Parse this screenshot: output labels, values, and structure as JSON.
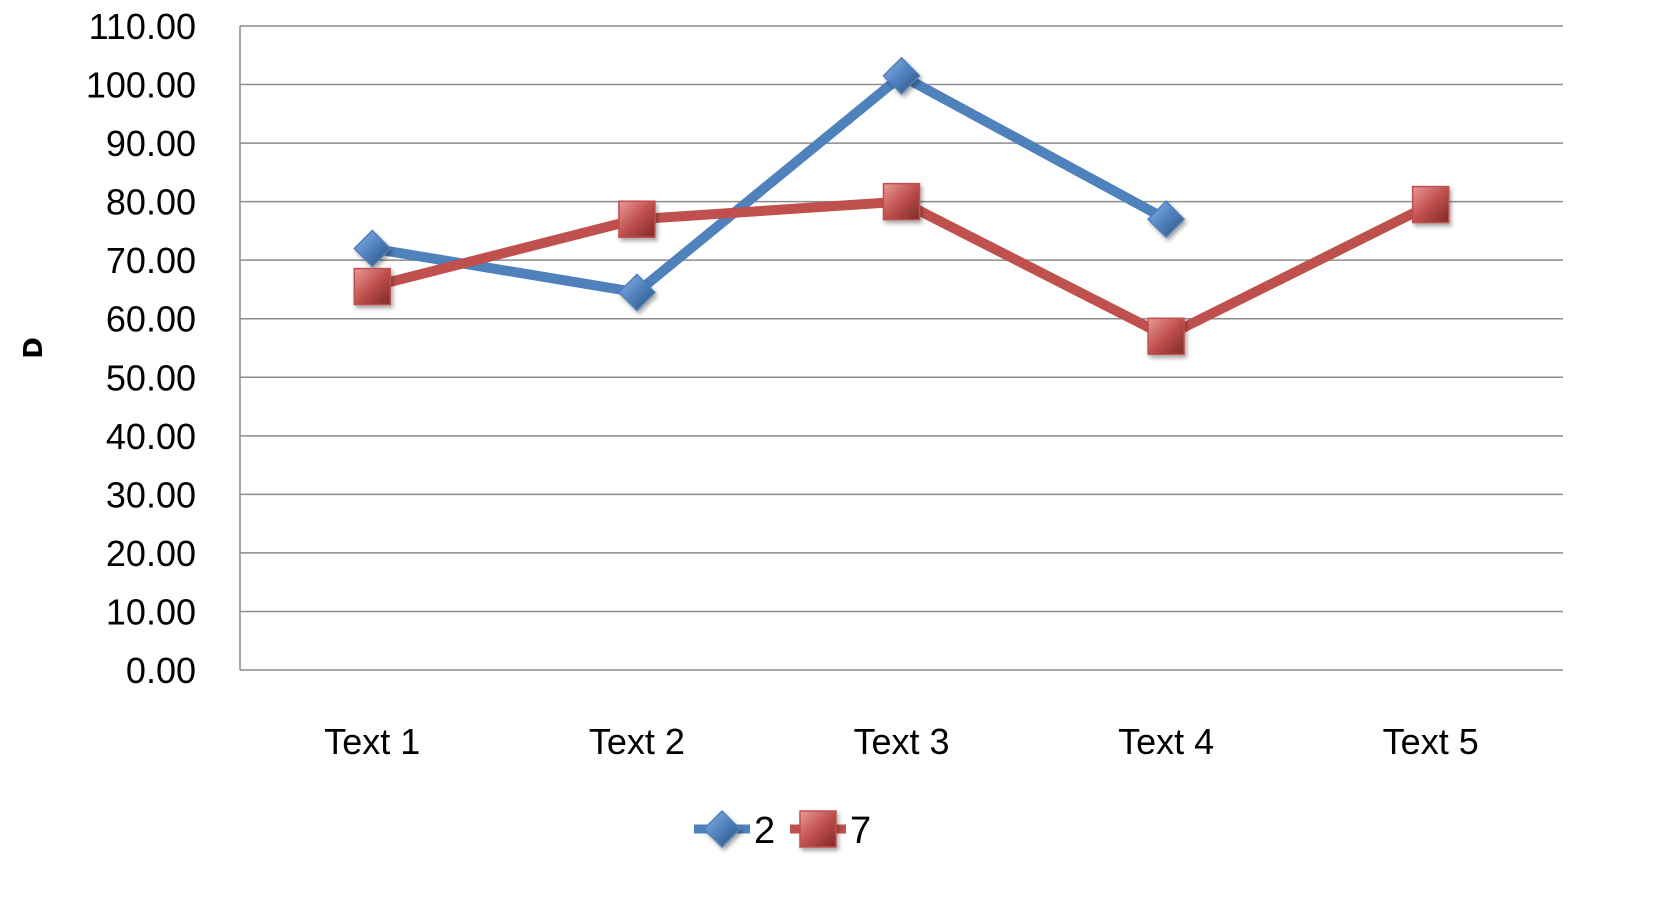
{
  "chart_data": {
    "type": "line",
    "categories": [
      "Text 1",
      "Text 2",
      "Text 3",
      "Text 4",
      "Text 5"
    ],
    "series": [
      {
        "name": "2",
        "values": [
          72,
          64.5,
          101.5,
          77,
          null
        ],
        "color": "#4f81bd",
        "marker": "diamond"
      },
      {
        "name": "7",
        "values": [
          65.5,
          77,
          80,
          57,
          79.5
        ],
        "color": "#c0504d",
        "marker": "square"
      }
    ],
    "ylabel": "D",
    "xlabel": "",
    "ylim": [
      0,
      110
    ],
    "ytick_step": 10,
    "ytick_format_decimals": 2,
    "grid": true,
    "legend": "bottom"
  }
}
